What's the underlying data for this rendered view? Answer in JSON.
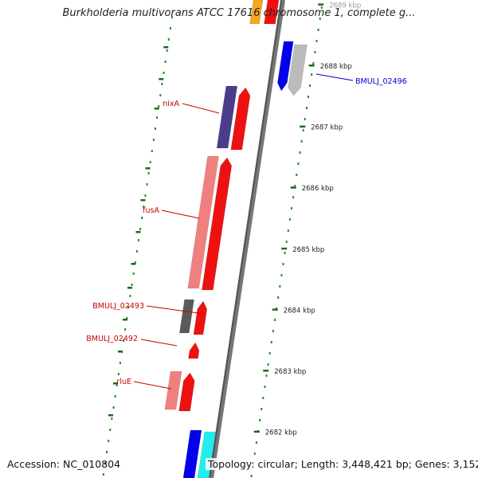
{
  "title": "Burkholderia multivorans ATCC 17616 chromosome 1, complete g...",
  "footer": {
    "accession": "Accession: NC_010804",
    "summary": "Topology: circular; Length: 3,448,421 bp; Genes: 3,152"
  },
  "scale": {
    "unit": "kbp",
    "ticks": [
      {
        "label": "2689 kbp",
        "kbp": 2689
      },
      {
        "label": "2688 kbp",
        "kbp": 2688
      },
      {
        "label": "2687 kbp",
        "kbp": 2687
      },
      {
        "label": "2686 kbp",
        "kbp": 2686
      },
      {
        "label": "2685 kbp",
        "kbp": 2685
      },
      {
        "label": "2684 kbp",
        "kbp": 2684
      },
      {
        "label": "2683 kbp",
        "kbp": 2683
      },
      {
        "label": "2682 kbp",
        "kbp": 2682
      }
    ]
  },
  "colors": {
    "backbone": "#777777",
    "track_dots": "#2a8a2a",
    "label_red": "#cc0000",
    "label_blue": "#0000cc"
  },
  "features": [
    {
      "name": "nixA",
      "track": "outer",
      "strand": "reverse",
      "color": "#4a3e8c",
      "labeled": true,
      "label_color": "#cc0000"
    },
    {
      "name": "fusA",
      "track": "outer",
      "strand": "reverse",
      "color": "#f08080",
      "labeled": true,
      "label_color": "#cc0000"
    },
    {
      "name": "BMULJ_02493",
      "track": "outer",
      "strand": "reverse",
      "color": "#5a5a5a",
      "labeled": true,
      "label_color": "#cc0000"
    },
    {
      "name": "BMULJ_02492",
      "track": "inner",
      "strand": "reverse",
      "color": "#ee1111",
      "labeled": true,
      "label_color": "#cc0000"
    },
    {
      "name": "rluE",
      "track": "outer",
      "strand": "reverse",
      "color": "#f08080",
      "labeled": true,
      "label_color": "#cc0000"
    },
    {
      "name": "BMULJ_02496",
      "track": "inner",
      "strand": "forward",
      "color": "#bbbbbb",
      "labeled": true,
      "label_color": "#0000cc"
    }
  ]
}
